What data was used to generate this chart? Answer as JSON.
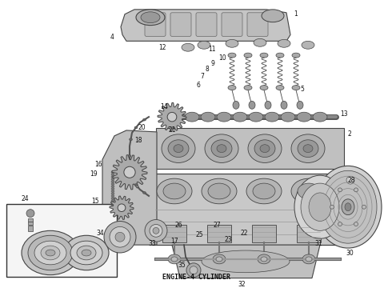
{
  "title": "ENGINE-4 CYLINDER",
  "bg_color": "#ffffff",
  "title_fontsize": 6,
  "fig_width": 4.9,
  "fig_height": 3.6,
  "dpi": 100,
  "gray_light": "#d8d8d8",
  "gray_med": "#aaaaaa",
  "gray_dark": "#666666",
  "gray_line": "#444444",
  "label_color": "#111111"
}
